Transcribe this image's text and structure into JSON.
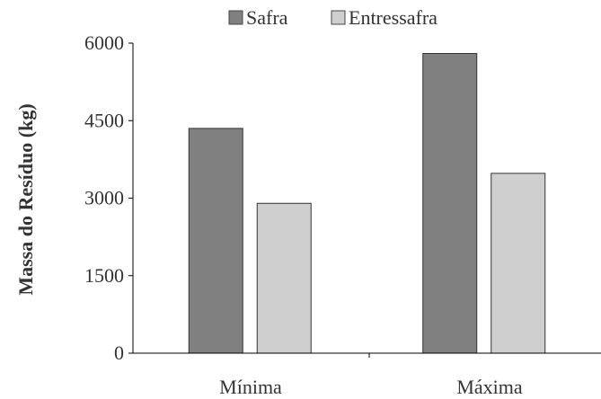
{
  "chart_data": {
    "type": "bar",
    "categories": [
      "Mínima",
      "Máxima"
    ],
    "series": [
      {
        "name": "Safra",
        "values": [
          4350,
          5800
        ],
        "color": "#808080"
      },
      {
        "name": "Entressafra",
        "values": [
          2900,
          3480
        ],
        "color": "#cfcfcf"
      }
    ],
    "xlabel": "",
    "ylabel": "Massa do Resíduo (kg)",
    "ylim": [
      0,
      6000
    ],
    "yticks": [
      0,
      1500,
      3000,
      4500,
      6000
    ],
    "ytick_labels": [
      "0",
      "1500",
      "3000",
      "4500",
      "6000"
    ],
    "grid": false,
    "legend": "top-center"
  }
}
